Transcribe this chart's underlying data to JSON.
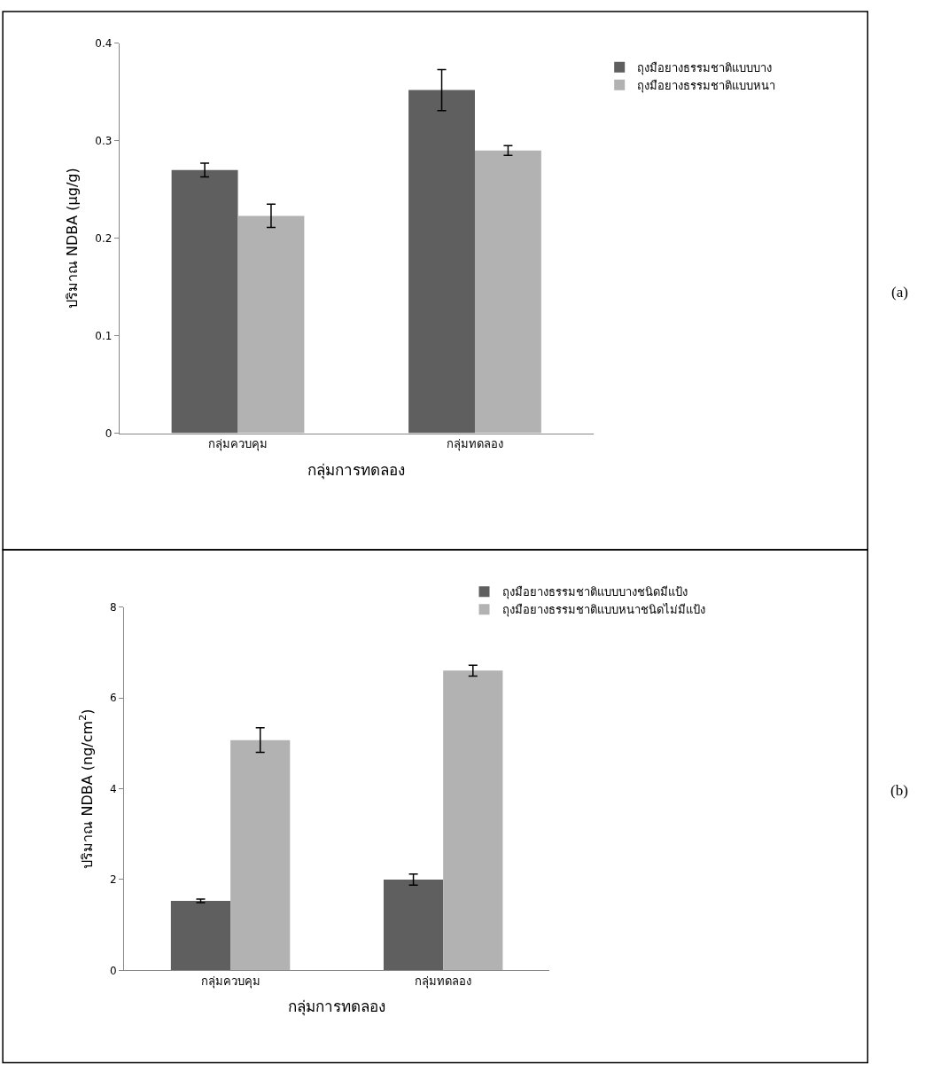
{
  "chart_data": [
    {
      "type": "bar",
      "categories": [
        "กลุ่มควบคุม",
        "กลุ่มทดลอง"
      ],
      "xlabel": "กลุ่มการทดลอง",
      "ylabel": "ปริมาณ NDBA (µg/g)",
      "ylim": [
        0,
        0.4
      ],
      "yticks": [
        0,
        0.1,
        0.2,
        0.3,
        0.4
      ],
      "grid": false,
      "legend": "top right",
      "annotations": [
        "(a)"
      ],
      "series": [
        {
          "name": "ถุงมือยางธรรมชาติแบบบาง",
          "color": "#5f5f5f",
          "values": [
            0.27,
            0.352
          ],
          "errors": [
            0.007,
            0.021
          ]
        },
        {
          "name": "ถุงมือยางธรรมชาติแบบหนา",
          "color": "#b2b2b2",
          "values": [
            0.223,
            0.29
          ],
          "errors": [
            0.012,
            0.005
          ]
        }
      ]
    },
    {
      "type": "bar",
      "categories": [
        "กลุ่มควบคุม",
        "กลุ่มทดลอง"
      ],
      "xlabel": "กลุ่มการทดลอง",
      "ylabel": "ปริมาณ NDBA (ng/cm$^{2}$)",
      "ylim": [
        0,
        8
      ],
      "yticks": [
        0,
        2,
        4,
        6,
        8
      ],
      "grid": false,
      "legend": "top right",
      "annotations": [
        "(b)"
      ],
      "series": [
        {
          "name": "ถุงมือยางธรรมชาติแบบบางชนิดมีแป้ง",
          "color": "#5f5f5f",
          "values": [
            1.53,
            2.0
          ],
          "errors": [
            0.04,
            0.12
          ]
        },
        {
          "name": "ถุงมือยางธรรมชาติแบบหนาชนิดไม่มีแป้ง",
          "color": "#b2b2b2",
          "values": [
            5.07,
            6.6
          ],
          "errors": [
            0.27,
            0.12
          ]
        }
      ]
    }
  ]
}
